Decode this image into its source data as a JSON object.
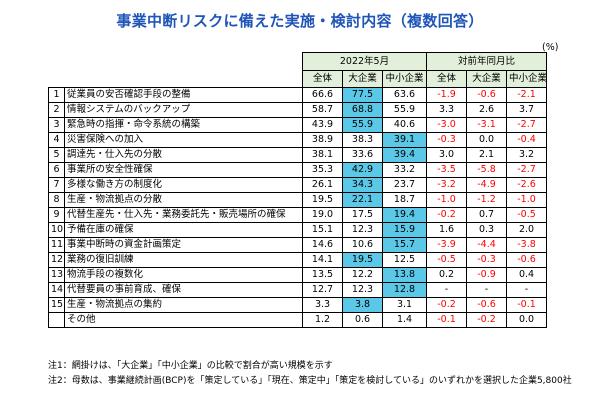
{
  "title": "事業中断リスクに備えた実施・検討内容（複数回答）",
  "unit": "(%)",
  "chart_data": {
    "type": "table",
    "period_label": "2022年5月",
    "yoy_label": "対前年同月比",
    "columns": [
      "全体",
      "大企業",
      "中小企業"
    ],
    "rows": [
      {
        "no": "1",
        "item": "従業員の安否確認手段の整備",
        "values": [
          "66.6",
          "77.5",
          "63.6"
        ],
        "changes": [
          "-1.9",
          "-0.6",
          "-2.1"
        ],
        "hl": 1
      },
      {
        "no": "2",
        "item": "情報システムのバックアップ",
        "values": [
          "58.7",
          "68.8",
          "55.9"
        ],
        "changes": [
          "3.3",
          "2.6",
          "3.7"
        ],
        "hl": 1
      },
      {
        "no": "3",
        "item": "緊急時の指揮・命令系統の構築",
        "values": [
          "43.9",
          "55.9",
          "40.6"
        ],
        "changes": [
          "-3.0",
          "-3.1",
          "-2.7"
        ],
        "hl": 1
      },
      {
        "no": "4",
        "item": "災害保険への加入",
        "values": [
          "38.9",
          "38.3",
          "39.1"
        ],
        "changes": [
          "-0.3",
          "0.0",
          "-0.4"
        ],
        "hl": 2
      },
      {
        "no": "5",
        "item": "調達先・仕入先の分散",
        "values": [
          "38.1",
          "33.6",
          "39.4"
        ],
        "changes": [
          "3.0",
          "2.1",
          "3.2"
        ],
        "hl": 2
      },
      {
        "no": "6",
        "item": "事業所の安全性確保",
        "values": [
          "35.3",
          "42.9",
          "33.2"
        ],
        "changes": [
          "-3.5",
          "-5.8",
          "-2.7"
        ],
        "hl": 1
      },
      {
        "no": "7",
        "item": "多様な働き方の制度化",
        "values": [
          "26.1",
          "34.3",
          "23.7"
        ],
        "changes": [
          "-3.2",
          "-4.9",
          "-2.6"
        ],
        "hl": 1
      },
      {
        "no": "8",
        "item": "生産・物流拠点の分散",
        "values": [
          "19.5",
          "22.1",
          "18.7"
        ],
        "changes": [
          "-1.0",
          "-1.2",
          "-1.0"
        ],
        "hl": 1
      },
      {
        "no": "9",
        "item": "代替生産先・仕入先・業務委託先・販売場所の確保",
        "values": [
          "19.0",
          "17.5",
          "19.4"
        ],
        "changes": [
          "-0.2",
          "0.7",
          "-0.5"
        ],
        "hl": 2
      },
      {
        "no": "10",
        "item": "予備在庫の確保",
        "values": [
          "15.1",
          "12.3",
          "15.9"
        ],
        "changes": [
          "1.6",
          "0.3",
          "2.0"
        ],
        "hl": 2
      },
      {
        "no": "11",
        "item": "事業中断時の資金計画策定",
        "values": [
          "14.6",
          "10.6",
          "15.7"
        ],
        "changes": [
          "-3.9",
          "-4.4",
          "-3.8"
        ],
        "hl": 2
      },
      {
        "no": "12",
        "item": "業務の復旧訓練",
        "values": [
          "14.1",
          "19.5",
          "12.5"
        ],
        "changes": [
          "-0.5",
          "-0.3",
          "-0.6"
        ],
        "hl": 1
      },
      {
        "no": "13",
        "item": "物流手段の複数化",
        "values": [
          "13.5",
          "12.2",
          "13.8"
        ],
        "changes": [
          "0.2",
          "-0.9",
          "0.4"
        ],
        "hl": 2
      },
      {
        "no": "14",
        "item": "代替要員の事前育成、確保",
        "values": [
          "12.7",
          "12.3",
          "12.8"
        ],
        "changes": [
          "-",
          "-",
          "-"
        ],
        "hl": 2
      },
      {
        "no": "15",
        "item": "生産・物流拠点の集約",
        "values": [
          "3.3",
          "3.8",
          "3.1"
        ],
        "changes": [
          "-0.2",
          "-0.6",
          "-0.1"
        ],
        "hl": 1
      },
      {
        "no": "",
        "item": "その他",
        "values": [
          "1.2",
          "0.6",
          "1.4"
        ],
        "changes": [
          "-0.1",
          "-0.2",
          "0.0"
        ],
        "hl": -1
      }
    ],
    "highlight_color": "#5bc8e8",
    "header_color": "#e2efda",
    "negative_color": "#ff0000"
  },
  "notes": [
    "注1：網掛けは、「大企業」「中小企業」の比較で割合が高い規模を示す",
    "注2：母数は、事業継続計画(BCP)を「策定している」「現在、策定中」「策定を検討している」のいずれかを選択した企業5,800社"
  ]
}
